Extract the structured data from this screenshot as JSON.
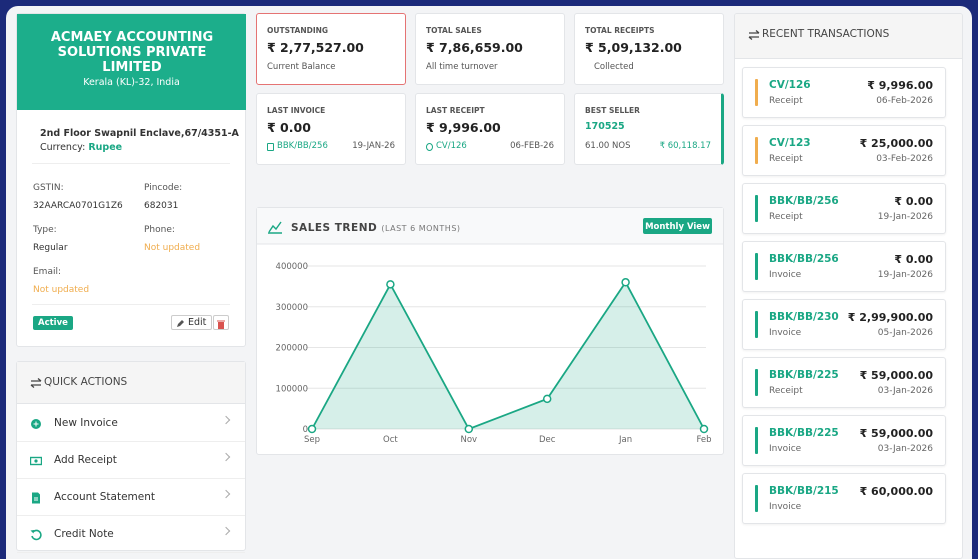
{
  "company": {
    "name": "ACMAEY ACCOUNTING SOLUTIONS PRIVATE LIMITED",
    "location": "Kerala (KL)-32, India",
    "address": "2nd Floor Swapnil Enclave,67/4351-A",
    "currency_label": "Currency:",
    "currency": "Rupee",
    "fields": [
      {
        "label": "GSTIN:",
        "value": "32AARCA0701G1Z6"
      },
      {
        "label": "Pincode:",
        "value": "682031"
      },
      {
        "label": "Type:",
        "value": "Regular"
      },
      {
        "label": "Phone:",
        "value": "Not updated"
      },
      {
        "label": "Email:",
        "value": "Not updated"
      }
    ],
    "status": "Active",
    "edit": "Edit"
  },
  "quick_actions": {
    "title": "QUICK ACTIONS",
    "items": [
      "New Invoice",
      "Add Receipt",
      "Account Statement",
      "Credit Note"
    ]
  },
  "stats": [
    {
      "label": "OUTSTANDING",
      "value": "₹ 2,77,527.00",
      "note": "Current Balance"
    },
    {
      "label": "TOTAL SALES",
      "value": "₹ 7,86,659.00",
      "note": "All time turnover"
    },
    {
      "label": "TOTAL RECEIPTS",
      "value": "₹ 5,09,132.00",
      "note": "Collected"
    },
    {
      "label": "LAST INVOICE",
      "value": "₹ 0.00",
      "ref": "BBK/BB/256",
      "date": "19-JAN-26"
    },
    {
      "label": "LAST RECEIPT",
      "value": "₹ 9,996.00",
      "ref": "CV/126",
      "date": "06-FEB-26"
    },
    {
      "label": "BEST SELLER",
      "value": "170525",
      "ref": "61.00 NOS",
      "date": "₹ 60,118.17"
    }
  ],
  "chart_data": {
    "type": "area",
    "title": "SALES TREND",
    "subtitle": "(LAST 6 MONTHS)",
    "button": "Monthly View",
    "categories": [
      "Sep",
      "Oct",
      "Nov",
      "Dec",
      "Jan",
      "Feb"
    ],
    "values": [
      0,
      355000,
      0,
      74000,
      360000,
      0
    ],
    "color": "#1aa784",
    "ylim": [
      0,
      400000
    ],
    "yticks": [
      0,
      100000,
      200000,
      300000,
      400000
    ],
    "grid": true
  },
  "transactions": {
    "title": "RECENT TRANSACTIONS",
    "items": [
      {
        "ref": "CV/126",
        "type": "Receipt",
        "amount": "₹ 9,996.00",
        "date": "06-Feb-2026",
        "accent": "#f0ad4e"
      },
      {
        "ref": "CV/123",
        "type": "Receipt",
        "amount": "₹ 25,000.00",
        "date": "03-Feb-2026",
        "accent": "#f0ad4e"
      },
      {
        "ref": "BBK/BB/256",
        "type": "Receipt",
        "amount": "₹ 0.00",
        "date": "19-Jan-2026",
        "accent": "#1aa784"
      },
      {
        "ref": "BBK/BB/256",
        "type": "Invoice",
        "amount": "₹ 0.00",
        "date": "19-Jan-2026",
        "accent": "#1aa784"
      },
      {
        "ref": "BBK/BB/230",
        "type": "Invoice",
        "amount": "₹ 2,99,900.00",
        "date": "05-Jan-2026",
        "accent": "#1aa784"
      },
      {
        "ref": "BBK/BB/225",
        "type": "Receipt",
        "amount": "₹ 59,000.00",
        "date": "03-Jan-2026",
        "accent": "#1aa784"
      },
      {
        "ref": "BBK/BB/225",
        "type": "Invoice",
        "amount": "₹ 59,000.00",
        "date": "03-Jan-2026",
        "accent": "#1aa784"
      },
      {
        "ref": "BBK/BB/215",
        "type": "Invoice",
        "amount": "₹ 60,000.00",
        "date": "",
        "accent": "#1aa784"
      }
    ]
  }
}
